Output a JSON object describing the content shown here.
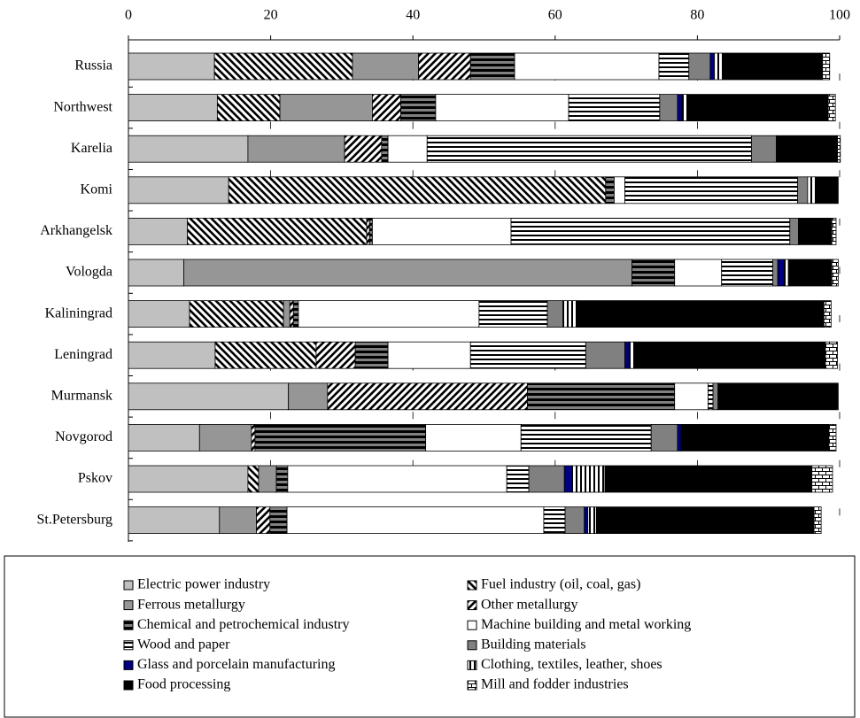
{
  "chart_data": {
    "type": "stacked-bar-horizontal",
    "categories": [
      "Russia",
      "Northwest",
      "Karelia",
      "Komi",
      "Arkhangelsk",
      "Vologda",
      "Kaliningrad",
      "Leningrad",
      "Murmansk",
      "Novgorod",
      "Pskov",
      "St.Petersburg"
    ],
    "xlim": [
      0,
      100
    ],
    "xticks": [
      0,
      20,
      40,
      60,
      80,
      100
    ],
    "series": [
      {
        "name": "Electric power industry",
        "color": "#c0c0c0",
        "pattern": "solid",
        "values": [
          12.1,
          12.5,
          16.8,
          14.1,
          8.3,
          7.8,
          8.6,
          12.2,
          22.5,
          10.0,
          16.8,
          12.8
        ]
      },
      {
        "name": "Fuel industry (oil, coal, gas)",
        "color": "#000000",
        "pattern": "diag-down",
        "values": [
          19.4,
          8.8,
          0,
          53.0,
          25.2,
          0,
          13.2,
          14.2,
          0,
          0,
          1.5,
          0
        ]
      },
      {
        "name": "Ferrous metallurgy",
        "color": "#969696",
        "pattern": "solid",
        "values": [
          9.3,
          13.0,
          13.6,
          0,
          0,
          63.0,
          0.9,
          0,
          5.5,
          7.3,
          2.5,
          5.2
        ]
      },
      {
        "name": "Other metallurgy",
        "color": "#000000",
        "pattern": "diag-up",
        "values": [
          7.3,
          4.0,
          5.2,
          0,
          0.4,
          0,
          0.5,
          5.5,
          28.1,
          0.5,
          0,
          1.9
        ]
      },
      {
        "name": "Chemical and petrochemical industry",
        "color": "#000000",
        "pattern": "hstripe-thick",
        "values": [
          6.2,
          4.9,
          0.9,
          1.2,
          0.4,
          6.0,
          0.7,
          4.6,
          20.7,
          24.0,
          1.6,
          2.4
        ]
      },
      {
        "name": "Machine building and metal working",
        "color": "#ffffff",
        "pattern": "solid",
        "values": [
          20.3,
          18.7,
          5.5,
          1.5,
          19.5,
          6.6,
          25.4,
          11.6,
          4.7,
          13.4,
          30.8,
          36.1
        ]
      },
      {
        "name": "Wood and paper",
        "color": "#000000",
        "pattern": "hstripe",
        "values": [
          4.2,
          12.8,
          45.6,
          24.3,
          39.2,
          7.2,
          9.6,
          16.2,
          0.7,
          18.3,
          3.1,
          3.0
        ]
      },
      {
        "name": "Building materials",
        "color": "#808080",
        "pattern": "solid",
        "values": [
          3.0,
          2.5,
          3.5,
          1.4,
          1.2,
          0.7,
          2.2,
          5.5,
          0.7,
          3.7,
          5.0,
          2.7
        ]
      },
      {
        "name": "Glass and porcelain manufacturing",
        "color": "#000080",
        "pattern": "solid",
        "values": [
          0.6,
          0.6,
          0,
          0,
          0,
          0.9,
          0,
          0.6,
          0,
          0.5,
          1.1,
          0.5
        ]
      },
      {
        "name": "Clothing, textiles, leather, shoes",
        "color": "#000000",
        "pattern": "vstripe",
        "values": [
          1.2,
          0.8,
          0,
          1.1,
          0,
          0.6,
          2.0,
          0.7,
          0,
          0,
          4.6,
          1.2
        ]
      },
      {
        "name": "Food processing",
        "color": "#000000",
        "pattern": "solid",
        "values": [
          14.0,
          19.8,
          8.6,
          3.2,
          4.7,
          6.1,
          34.7,
          26.9,
          16.8,
          20.8,
          29.1,
          30.6
        ]
      },
      {
        "name": "Mill and fodder industries",
        "color": "#000000",
        "pattern": "brick",
        "values": [
          1.0,
          1.0,
          0.4,
          0,
          0.6,
          0.9,
          1.0,
          1.7,
          0.1,
          1.0,
          2.9,
          1.0
        ]
      }
    ],
    "legend": "bottom"
  }
}
